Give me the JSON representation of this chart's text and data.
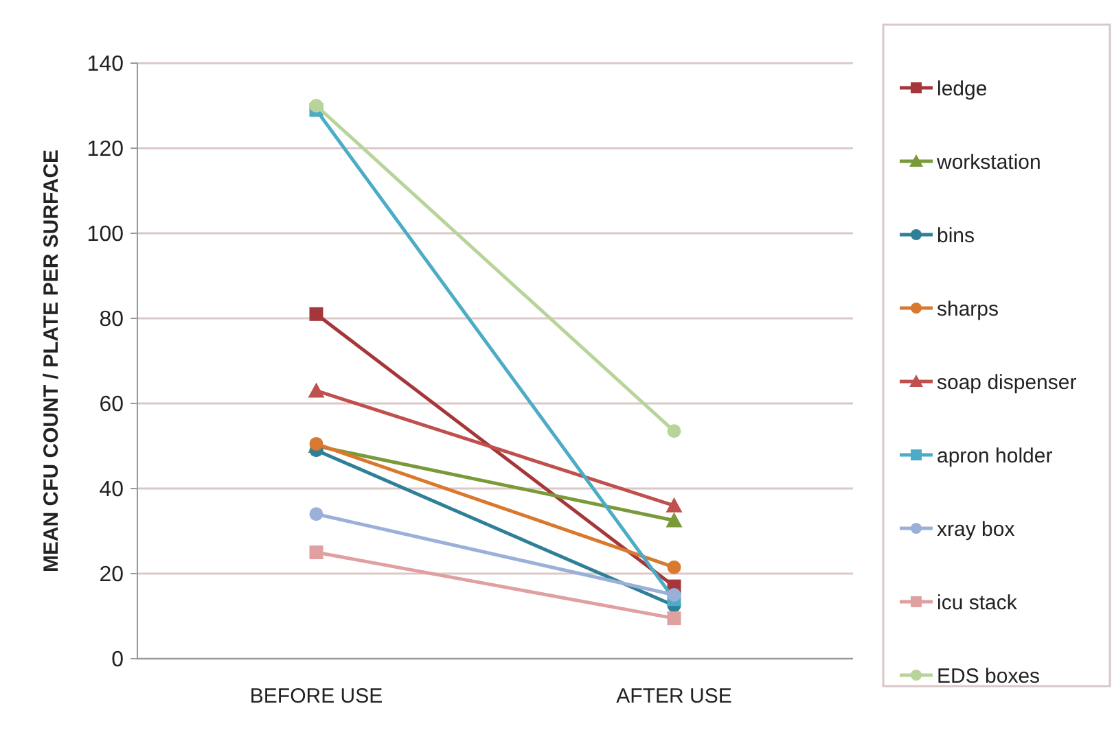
{
  "chart_data": {
    "type": "line",
    "ylabel": "MEAN CFU COUNT / PLATE PER SURFACE",
    "categories": [
      "BEFORE USE",
      "AFTER USE"
    ],
    "ylim": [
      0,
      140
    ],
    "yticks": [
      0,
      20,
      40,
      60,
      80,
      100,
      120,
      140
    ],
    "grid": "y",
    "legend": "right",
    "series": [
      {
        "name": "ledge",
        "color": "#a5373a",
        "marker": "square",
        "values": [
          81,
          17
        ]
      },
      {
        "name": "workstation",
        "color": "#7a9a3a",
        "marker": "triangle",
        "values": [
          50,
          32.5
        ]
      },
      {
        "name": "bins",
        "color": "#2f7f99",
        "marker": "circle",
        "values": [
          49,
          12.5
        ]
      },
      {
        "name": "sharps",
        "color": "#d9782f",
        "marker": "circle",
        "values": [
          50.5,
          21.5
        ]
      },
      {
        "name": "soap dispenser",
        "color": "#c0504d",
        "marker": "triangle",
        "values": [
          63,
          36
        ]
      },
      {
        "name": "apron holder",
        "color": "#4bacc6",
        "marker": "square",
        "values": [
          129,
          14
        ]
      },
      {
        "name": "xray box",
        "color": "#9bb0d8",
        "marker": "circle",
        "values": [
          34,
          15
        ]
      },
      {
        "name": "icu stack",
        "color": "#e0a0a0",
        "marker": "square",
        "values": [
          25,
          9.5
        ]
      },
      {
        "name": "EDS boxes",
        "color": "#b8d49a",
        "marker": "circle",
        "values": [
          130,
          53.5
        ]
      }
    ]
  }
}
